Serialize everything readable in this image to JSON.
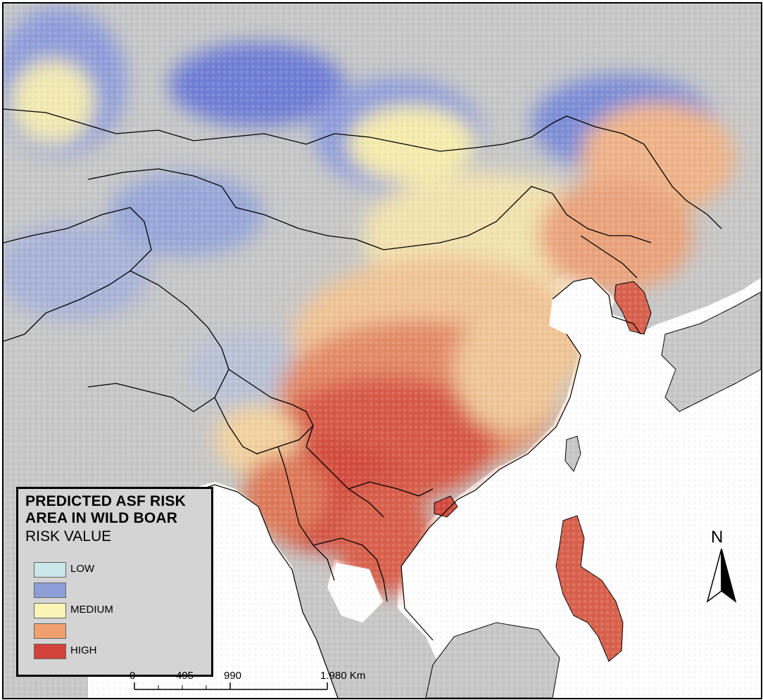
{
  "legend": {
    "title_line1": "PREDICTED ASF RISK",
    "title_line2": "AREA IN WILD BOAR",
    "subtitle": "RISK VALUE",
    "items": [
      {
        "label": "LOW",
        "color": "#c9e6e8"
      },
      {
        "label": "",
        "color": "#8e9fd8"
      },
      {
        "label": "MEDIUM",
        "color": "#fbf4b7"
      },
      {
        "label": "",
        "color": "#f1a070"
      },
      {
        "label": "HIGH",
        "color": "#d2413a"
      }
    ]
  },
  "scale": {
    "labels": [
      "0",
      "495",
      "990",
      "1.980 Km"
    ]
  },
  "north_arrow": {
    "label": "N"
  },
  "colors": {
    "background_land": "#c8c8c8",
    "sea": "#ffffff",
    "low_blue": "#6f7fd6",
    "medium_yellow": "#fbf1a8",
    "high_red": "#cf3b33",
    "orange": "#ea8b62"
  }
}
